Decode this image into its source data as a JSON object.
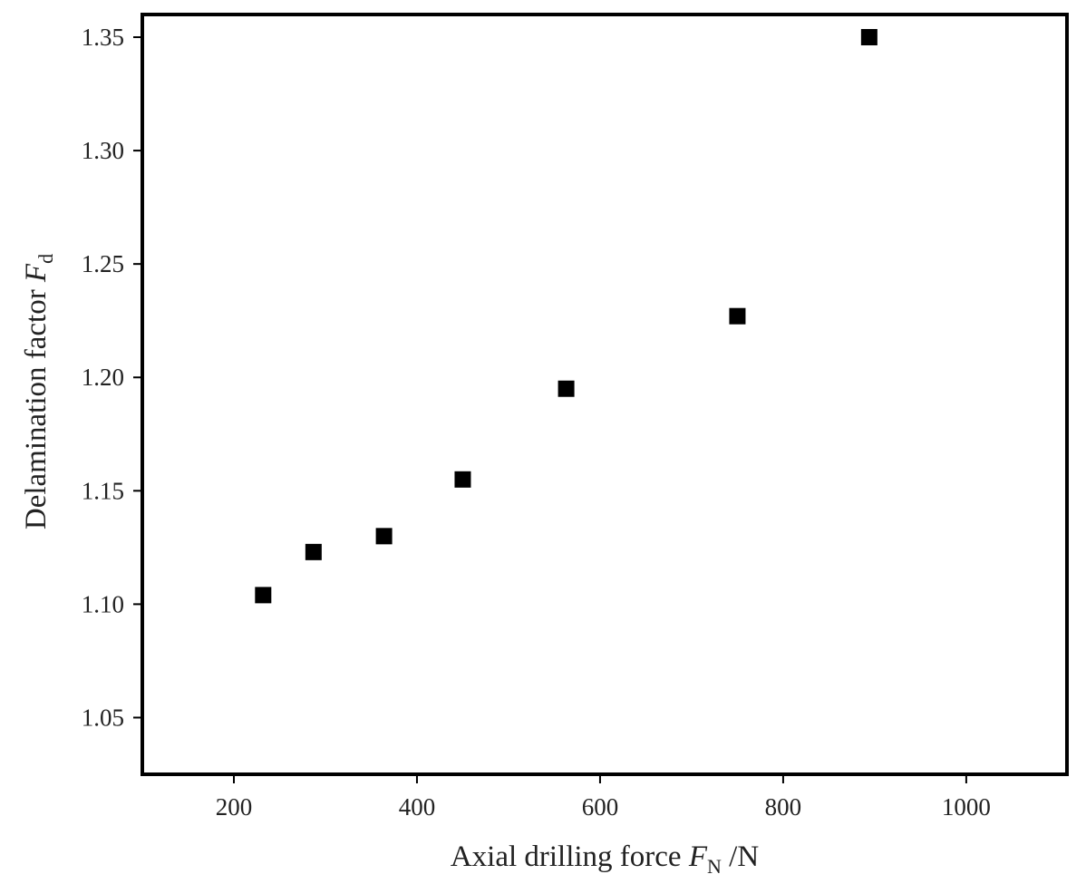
{
  "chart_data": {
    "type": "scatter",
    "xlabel": {
      "text": "Axial drilling force ",
      "symbol": "F",
      "subscript": "N",
      "suffix": " /N"
    },
    "ylabel": {
      "text": "Delamination factor ",
      "symbol": "F",
      "subscript": "d"
    },
    "xlim": [
      100,
      1110
    ],
    "ylim": [
      1.025,
      1.36
    ],
    "x_ticks": [
      200,
      400,
      600,
      800,
      1000
    ],
    "x_tick_labels": [
      "200",
      "400",
      "600",
      "800",
      "1000"
    ],
    "y_ticks": [
      1.05,
      1.1,
      1.15,
      1.2,
      1.25,
      1.3,
      1.35
    ],
    "y_tick_labels": [
      "1.05",
      "1.10",
      "1.15",
      "1.20",
      "1.25",
      "1.30",
      "1.35"
    ],
    "grid": false,
    "marker": "square",
    "marker_color": "#000000",
    "points": [
      {
        "x": 232,
        "y": 1.104
      },
      {
        "x": 287,
        "y": 1.123
      },
      {
        "x": 364,
        "y": 1.13
      },
      {
        "x": 450,
        "y": 1.155
      },
      {
        "x": 563,
        "y": 1.195
      },
      {
        "x": 750,
        "y": 1.227
      },
      {
        "x": 894,
        "y": 1.35
      }
    ]
  }
}
